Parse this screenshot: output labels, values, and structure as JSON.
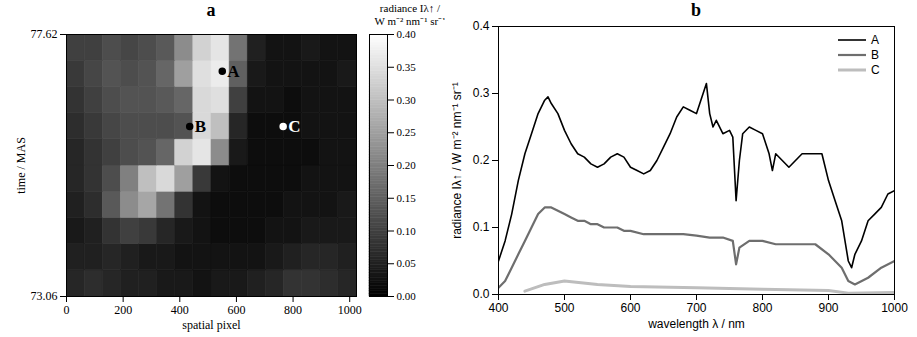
{
  "chart_data": [
    {
      "type": "heatmap",
      "title": "a",
      "xlabel": "spatial pixel",
      "ylabel": "time / MAS",
      "xlim": [
        0,
        1024
      ],
      "xticks": [
        0,
        200,
        400,
        600,
        800,
        1000
      ],
      "ylim": [
        73.06,
        77.62
      ],
      "yticks": [
        73.06,
        77.62
      ],
      "cells": {
        "x_edges": [
          0,
          64,
          128,
          192,
          256,
          320,
          384,
          448,
          512,
          576,
          640,
          704,
          768,
          832,
          896,
          960,
          1024
        ],
        "y_edges": [
          73.06,
          73.516,
          73.972,
          74.428,
          74.884,
          75.34,
          75.796,
          76.252,
          76.708,
          77.164,
          77.62
        ],
        "values": [
          [
            0.06,
            0.07,
            0.06,
            0.05,
            0.05,
            0.04,
            0.04,
            0.03,
            0.04,
            0.04,
            0.05,
            0.06,
            0.08,
            0.08,
            0.07,
            0.06
          ],
          [
            0.05,
            0.05,
            0.06,
            0.05,
            0.04,
            0.04,
            0.03,
            0.03,
            0.03,
            0.03,
            0.03,
            0.04,
            0.05,
            0.06,
            0.06,
            0.05
          ],
          [
            0.04,
            0.05,
            0.08,
            0.1,
            0.09,
            0.06,
            0.04,
            0.03,
            0.02,
            0.02,
            0.02,
            0.03,
            0.03,
            0.04,
            0.04,
            0.04
          ],
          [
            0.05,
            0.07,
            0.14,
            0.22,
            0.26,
            0.18,
            0.08,
            0.03,
            0.02,
            0.02,
            0.02,
            0.02,
            0.03,
            0.03,
            0.03,
            0.04
          ],
          [
            0.06,
            0.08,
            0.12,
            0.2,
            0.3,
            0.34,
            0.25,
            0.09,
            0.03,
            0.02,
            0.02,
            0.02,
            0.02,
            0.03,
            0.03,
            0.03
          ],
          [
            0.06,
            0.08,
            0.1,
            0.12,
            0.13,
            0.16,
            0.33,
            0.36,
            0.22,
            0.04,
            0.02,
            0.02,
            0.02,
            0.02,
            0.03,
            0.03
          ],
          [
            0.07,
            0.09,
            0.11,
            0.12,
            0.12,
            0.12,
            0.13,
            0.34,
            0.3,
            0.06,
            0.02,
            0.02,
            0.02,
            0.03,
            0.03,
            0.03
          ],
          [
            0.08,
            0.1,
            0.12,
            0.13,
            0.13,
            0.14,
            0.16,
            0.34,
            0.35,
            0.1,
            0.03,
            0.03,
            0.02,
            0.03,
            0.03,
            0.03
          ],
          [
            0.09,
            0.11,
            0.13,
            0.12,
            0.13,
            0.16,
            0.25,
            0.35,
            0.37,
            0.15,
            0.04,
            0.03,
            0.03,
            0.03,
            0.03,
            0.04
          ],
          [
            0.1,
            0.1,
            0.12,
            0.11,
            0.12,
            0.14,
            0.22,
            0.33,
            0.36,
            0.18,
            0.05,
            0.03,
            0.03,
            0.04,
            0.03,
            0.03
          ]
        ]
      },
      "colorbar": {
        "title": [
          "radiance Iλ↑ /",
          "W m⁻² nm⁻¹ sr⁻¹"
        ],
        "range": [
          0,
          0.4
        ],
        "ticks": [
          {
            "value": 0,
            "label": "0.00"
          },
          {
            "value": 0.05,
            "label": "0.05"
          },
          {
            "value": 0.1,
            "label": "0.10"
          },
          {
            "value": 0.15,
            "label": "0.15"
          },
          {
            "value": 0.2,
            "label": "0.20"
          },
          {
            "value": 0.25,
            "label": "0.25"
          },
          {
            "value": 0.3,
            "label": "0.30"
          },
          {
            "value": 0.35,
            "label": "0.35"
          },
          {
            "value": 0.4,
            "label": "0.40"
          }
        ]
      },
      "points": [
        {
          "label": "A",
          "x": 550,
          "y": 76.98,
          "color": "#000000"
        },
        {
          "label": "B",
          "x": 435,
          "y": 76.02,
          "color": "#000000"
        },
        {
          "label": "C",
          "x": 765,
          "y": 76.02,
          "color": "#ffffff"
        }
      ]
    },
    {
      "type": "line",
      "title": "b",
      "xlabel": "wavelength λ / nm",
      "ylabel": "radiance Iλ↑ / W m⁻² nm⁻¹ sr⁻¹",
      "xlim": [
        400,
        1000
      ],
      "xticks": [
        400,
        500,
        600,
        700,
        800,
        900,
        1000
      ],
      "ylim": [
        0,
        0.4
      ],
      "yticks": [
        {
          "value": 0,
          "label": "0.0"
        },
        0.1,
        0.2,
        0.3,
        0.4
      ],
      "legend": "top-right",
      "series": [
        {
          "name": "A",
          "color": "#000000",
          "x": [
            400,
            410,
            420,
            430,
            440,
            450,
            460,
            470,
            475,
            480,
            490,
            500,
            510,
            520,
            530,
            540,
            550,
            560,
            570,
            580,
            590,
            600,
            610,
            620,
            630,
            640,
            650,
            660,
            670,
            680,
            690,
            700,
            705,
            710,
            715,
            720,
            725,
            730,
            740,
            750,
            755,
            760,
            765,
            770,
            780,
            790,
            800,
            810,
            815,
            820,
            830,
            840,
            850,
            860,
            870,
            880,
            890,
            900,
            910,
            920,
            930,
            935,
            940,
            950,
            960,
            970,
            980,
            990,
            1000
          ],
          "values": [
            0.05,
            0.08,
            0.12,
            0.17,
            0.21,
            0.24,
            0.27,
            0.29,
            0.295,
            0.285,
            0.27,
            0.245,
            0.225,
            0.21,
            0.205,
            0.195,
            0.19,
            0.195,
            0.205,
            0.21,
            0.205,
            0.19,
            0.185,
            0.18,
            0.185,
            0.2,
            0.22,
            0.24,
            0.265,
            0.28,
            0.275,
            0.27,
            0.285,
            0.3,
            0.315,
            0.27,
            0.25,
            0.26,
            0.24,
            0.245,
            0.235,
            0.14,
            0.2,
            0.24,
            0.25,
            0.245,
            0.24,
            0.21,
            0.185,
            0.21,
            0.2,
            0.19,
            0.2,
            0.21,
            0.21,
            0.21,
            0.21,
            0.17,
            0.14,
            0.11,
            0.05,
            0.04,
            0.06,
            0.08,
            0.11,
            0.12,
            0.13,
            0.15,
            0.155
          ]
        },
        {
          "name": "B",
          "color": "#6e6e6e",
          "x": [
            400,
            410,
            420,
            430,
            440,
            450,
            460,
            470,
            480,
            490,
            500,
            510,
            520,
            530,
            540,
            550,
            560,
            570,
            580,
            590,
            600,
            620,
            640,
            660,
            680,
            700,
            720,
            740,
            755,
            760,
            765,
            780,
            800,
            820,
            840,
            860,
            880,
            900,
            920,
            930,
            940,
            960,
            980,
            1000
          ],
          "values": [
            0.01,
            0.02,
            0.04,
            0.06,
            0.08,
            0.1,
            0.12,
            0.13,
            0.13,
            0.125,
            0.12,
            0.115,
            0.11,
            0.11,
            0.105,
            0.105,
            0.1,
            0.1,
            0.1,
            0.095,
            0.095,
            0.09,
            0.09,
            0.09,
            0.09,
            0.088,
            0.085,
            0.085,
            0.08,
            0.045,
            0.07,
            0.08,
            0.08,
            0.075,
            0.075,
            0.075,
            0.075,
            0.06,
            0.04,
            0.02,
            0.015,
            0.025,
            0.04,
            0.05
          ]
        },
        {
          "name": "C",
          "color": "#bdbdbd",
          "x": [
            440,
            470,
            500,
            550,
            600,
            700,
            800,
            900,
            930,
            1000
          ],
          "values": [
            0.005,
            0.015,
            0.02,
            0.015,
            0.012,
            0.01,
            0.008,
            0.006,
            0.002,
            0.003
          ]
        }
      ]
    }
  ]
}
